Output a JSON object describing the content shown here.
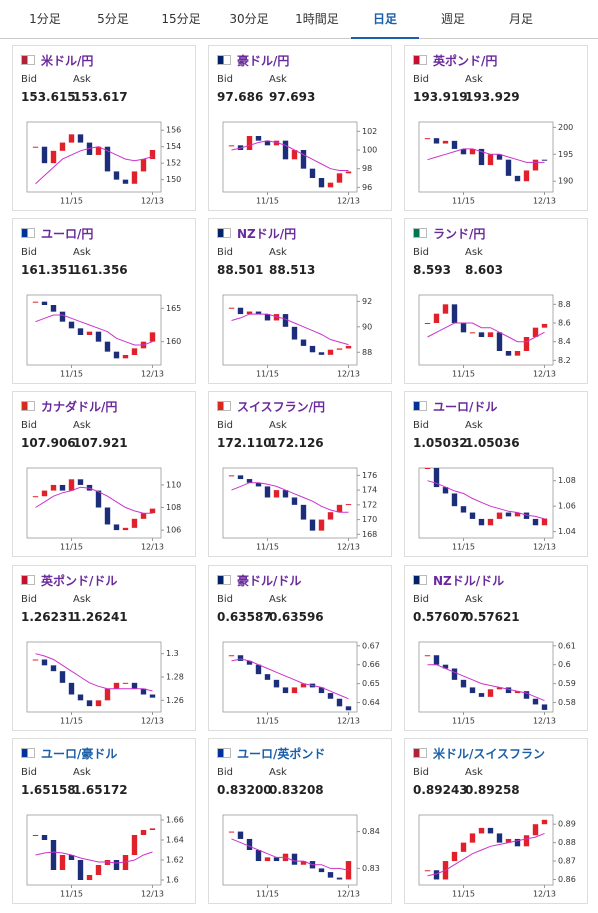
{
  "tabs": [
    "1分足",
    "5分足",
    "15分足",
    "30分足",
    "1時間足",
    "日足",
    "週足",
    "月足"
  ],
  "active_tab": 5,
  "bid_label": "Bid",
  "ask_label": "Ask",
  "xticks": [
    "11/15",
    "12/13"
  ],
  "cards": [
    {
      "name": "米ドル/円",
      "name_color": "#6a2a9c",
      "flag": "#b22234",
      "bid": "153.615",
      "ask": "153.617",
      "ylim": [
        148.5,
        157
      ],
      "yticks": [
        150,
        152,
        154,
        156
      ],
      "closes": [
        154,
        152,
        153.5,
        154.5,
        155.5,
        154.5,
        153,
        154,
        151,
        150,
        149.5,
        151,
        152.5,
        153.6
      ],
      "ma": [
        149.5,
        150.5,
        151.5,
        152.5,
        153,
        153.5,
        153.8,
        154,
        153.5,
        153,
        152.5,
        152.3,
        152.5,
        152.8
      ]
    },
    {
      "name": "豪ドル/円",
      "name_color": "#6a2a9c",
      "flag": "#012169",
      "bid": "97.686",
      "ask": "97.693",
      "ylim": [
        95.5,
        103
      ],
      "yticks": [
        96,
        98,
        100,
        102
      ],
      "closes": [
        100.5,
        100,
        101.5,
        101,
        100.5,
        101,
        99,
        100,
        98,
        97,
        96,
        96.5,
        97.5,
        97.7
      ],
      "ma": [
        100,
        100.2,
        100.5,
        100.8,
        101,
        100.8,
        100.5,
        100,
        99.5,
        99,
        98.5,
        98,
        97.8,
        97.8
      ]
    },
    {
      "name": "英ポンド/円",
      "name_color": "#6a2a9c",
      "flag": "#c8102e",
      "bid": "193.919",
      "ask": "193.929",
      "ylim": [
        188,
        201
      ],
      "yticks": [
        190,
        195,
        200
      ],
      "closes": [
        198,
        197,
        197.5,
        196,
        195,
        196,
        193,
        195,
        194,
        191,
        190,
        192,
        194,
        193.9
      ],
      "ma": [
        194,
        194.5,
        195,
        195.5,
        196,
        196,
        195.5,
        195,
        195,
        194.5,
        194,
        193.5,
        193.5,
        193.5
      ]
    },
    {
      "name": "ユーロ/円",
      "name_color": "#6a2a9c",
      "flag": "#003399",
      "bid": "161.351",
      "ask": "161.356",
      "ylim": [
        156.5,
        167
      ],
      "yticks": [
        160,
        165
      ],
      "closes": [
        166,
        165.5,
        164.5,
        163,
        162,
        161,
        161.5,
        160,
        158.5,
        157.5,
        158,
        159,
        160,
        161.4
      ],
      "ma": [
        163,
        163.5,
        164,
        164,
        163.5,
        163,
        162.5,
        162,
        161.5,
        160.5,
        160,
        159.5,
        159.5,
        160
      ]
    },
    {
      "name": "NZドル/円",
      "name_color": "#6a2a9c",
      "flag": "#012169",
      "bid": "88.501",
      "ask": "88.513",
      "ylim": [
        87,
        92.5
      ],
      "yticks": [
        88,
        90,
        92
      ],
      "closes": [
        91.5,
        91,
        91.2,
        91,
        90.5,
        91,
        90,
        89,
        88.5,
        88,
        87.8,
        88.2,
        88.3,
        88.5
      ],
      "ma": [
        90.5,
        90.7,
        91,
        91,
        91,
        90.8,
        90.6,
        90.3,
        90,
        89.7,
        89.4,
        89,
        88.8,
        88.6
      ]
    },
    {
      "name": "ランド/円",
      "name_color": "#6a2a9c",
      "flag": "#007a4d",
      "bid": "8.593",
      "ask": "8.603",
      "ylim": [
        8.15,
        8.9
      ],
      "yticks": [
        8.2,
        8.4,
        8.6,
        8.8
      ],
      "closes": [
        8.6,
        8.7,
        8.8,
        8.6,
        8.5,
        8.5,
        8.45,
        8.5,
        8.3,
        8.25,
        8.3,
        8.45,
        8.55,
        8.59
      ],
      "ma": [
        8.45,
        8.5,
        8.55,
        8.6,
        8.6,
        8.6,
        8.55,
        8.55,
        8.5,
        8.45,
        8.4,
        8.4,
        8.45,
        8.5
      ]
    },
    {
      "name": "カナダドル/円",
      "name_color": "#6a2a9c",
      "flag": "#d52b1e",
      "bid": "107.906",
      "ask": "107.921",
      "ylim": [
        105.3,
        111.5
      ],
      "yticks": [
        106,
        108,
        110
      ],
      "closes": [
        109,
        109.5,
        110,
        109.5,
        110.5,
        110,
        109.5,
        108,
        106.5,
        106,
        106.2,
        107,
        107.5,
        107.9
      ],
      "ma": [
        108,
        108.5,
        109,
        109.3,
        109.5,
        109.8,
        109.7,
        109.4,
        109,
        108.5,
        108,
        107.7,
        107.5,
        107.5
      ]
    },
    {
      "name": "スイスフラン/円",
      "name_color": "#6a2a9c",
      "flag": "#da291c",
      "bid": "172.110",
      "ask": "172.126",
      "ylim": [
        167.5,
        177
      ],
      "yticks": [
        168,
        170,
        172,
        174,
        176
      ],
      "closes": [
        176,
        175.5,
        175,
        174.5,
        173,
        174,
        173,
        172,
        170,
        168.5,
        170,
        171,
        172,
        172.1
      ],
      "ma": [
        174,
        174.5,
        175,
        175,
        174.8,
        174.5,
        174,
        173.5,
        173,
        172.5,
        171.8,
        171.3,
        171,
        171
      ]
    },
    {
      "name": "ユーロ/ドル",
      "name_color": "#6a2a9c",
      "flag": "#003399",
      "bid": "1.05032",
      "ask": "1.05036",
      "ylim": [
        1.035,
        1.09
      ],
      "yticks": [
        1.04,
        1.06,
        1.08
      ],
      "closes": [
        1.09,
        1.075,
        1.07,
        1.06,
        1.055,
        1.05,
        1.045,
        1.05,
        1.055,
        1.052,
        1.055,
        1.05,
        1.045,
        1.0503
      ],
      "ma": [
        1.08,
        1.078,
        1.075,
        1.072,
        1.07,
        1.066,
        1.063,
        1.06,
        1.058,
        1.056,
        1.055,
        1.053,
        1.052,
        1.05
      ]
    },
    {
      "name": "英ポンド/ドル",
      "name_color": "#6a2a9c",
      "flag": "#c8102e",
      "bid": "1.26231",
      "ask": "1.26241",
      "ylim": [
        1.25,
        1.31
      ],
      "yticks": [
        1.26,
        1.28,
        1.3
      ],
      "closes": [
        1.295,
        1.29,
        1.285,
        1.275,
        1.265,
        1.26,
        1.255,
        1.26,
        1.27,
        1.275,
        1.275,
        1.27,
        1.265,
        1.2623
      ],
      "ma": [
        1.3,
        1.298,
        1.295,
        1.29,
        1.285,
        1.28,
        1.275,
        1.272,
        1.27,
        1.27,
        1.27,
        1.27,
        1.27,
        1.268
      ]
    },
    {
      "name": "豪ドル/ドル",
      "name_color": "#6a2a9c",
      "flag": "#012169",
      "bid": "0.63587",
      "ask": "0.63596",
      "ylim": [
        0.635,
        0.672
      ],
      "yticks": [
        0.64,
        0.65,
        0.66,
        0.67
      ],
      "closes": [
        0.665,
        0.662,
        0.66,
        0.655,
        0.652,
        0.648,
        0.645,
        0.648,
        0.65,
        0.648,
        0.645,
        0.642,
        0.638,
        0.6359
      ],
      "ma": [
        0.662,
        0.663,
        0.662,
        0.66,
        0.658,
        0.656,
        0.654,
        0.652,
        0.65,
        0.649,
        0.648,
        0.646,
        0.644,
        0.642
      ]
    },
    {
      "name": "NZドル/ドル",
      "name_color": "#6a2a9c",
      "flag": "#012169",
      "bid": "0.57607",
      "ask": "0.57621",
      "ylim": [
        0.575,
        0.612
      ],
      "yticks": [
        0.58,
        0.59,
        0.6,
        0.61
      ],
      "closes": [
        0.605,
        0.6,
        0.598,
        0.592,
        0.588,
        0.585,
        0.583,
        0.587,
        0.588,
        0.585,
        0.586,
        0.582,
        0.579,
        0.5761
      ],
      "ma": [
        0.6,
        0.6,
        0.598,
        0.596,
        0.594,
        0.592,
        0.59,
        0.589,
        0.588,
        0.587,
        0.586,
        0.585,
        0.583,
        0.581
      ]
    },
    {
      "name": "ユーロ/豪ドル",
      "name_color": "#1a5fa8",
      "flag": "#003399",
      "bid": "1.65158",
      "ask": "1.65172",
      "ylim": [
        1.595,
        1.665
      ],
      "yticks": [
        1.6,
        1.62,
        1.64,
        1.66
      ],
      "closes": [
        1.645,
        1.64,
        1.61,
        1.625,
        1.62,
        1.6,
        1.605,
        1.615,
        1.62,
        1.61,
        1.625,
        1.645,
        1.65,
        1.6516
      ],
      "ma": [
        1.625,
        1.627,
        1.628,
        1.627,
        1.625,
        1.622,
        1.62,
        1.618,
        1.618,
        1.617,
        1.618,
        1.62,
        1.625,
        1.628
      ]
    },
    {
      "name": "ユーロ/英ポンド",
      "name_color": "#1a5fa8",
      "flag": "#003399",
      "bid": "0.83200",
      "ask": "0.83208",
      "ylim": [
        0.8255,
        0.8445
      ],
      "yticks": [
        0.83,
        0.84
      ],
      "closes": [
        0.84,
        0.838,
        0.835,
        0.832,
        0.833,
        0.832,
        0.834,
        0.831,
        0.832,
        0.83,
        0.829,
        0.8275,
        0.827,
        0.832
      ],
      "ma": [
        0.838,
        0.837,
        0.836,
        0.835,
        0.834,
        0.833,
        0.833,
        0.832,
        0.832,
        0.831,
        0.831,
        0.83,
        0.83,
        0.8295
      ]
    },
    {
      "name": "米ドル/スイスフラン",
      "name_color": "#1a5fa8",
      "flag": "#b22234",
      "bid": "0.89243",
      "ask": "0.89258",
      "ylim": [
        0.857,
        0.895
      ],
      "yticks": [
        0.86,
        0.87,
        0.88,
        0.89
      ],
      "closes": [
        0.865,
        0.86,
        0.87,
        0.875,
        0.88,
        0.885,
        0.888,
        0.885,
        0.88,
        0.882,
        0.878,
        0.884,
        0.89,
        0.8924
      ],
      "ma": [
        0.862,
        0.863,
        0.865,
        0.868,
        0.871,
        0.874,
        0.876,
        0.878,
        0.879,
        0.88,
        0.881,
        0.882,
        0.883,
        0.885
      ]
    }
  ]
}
